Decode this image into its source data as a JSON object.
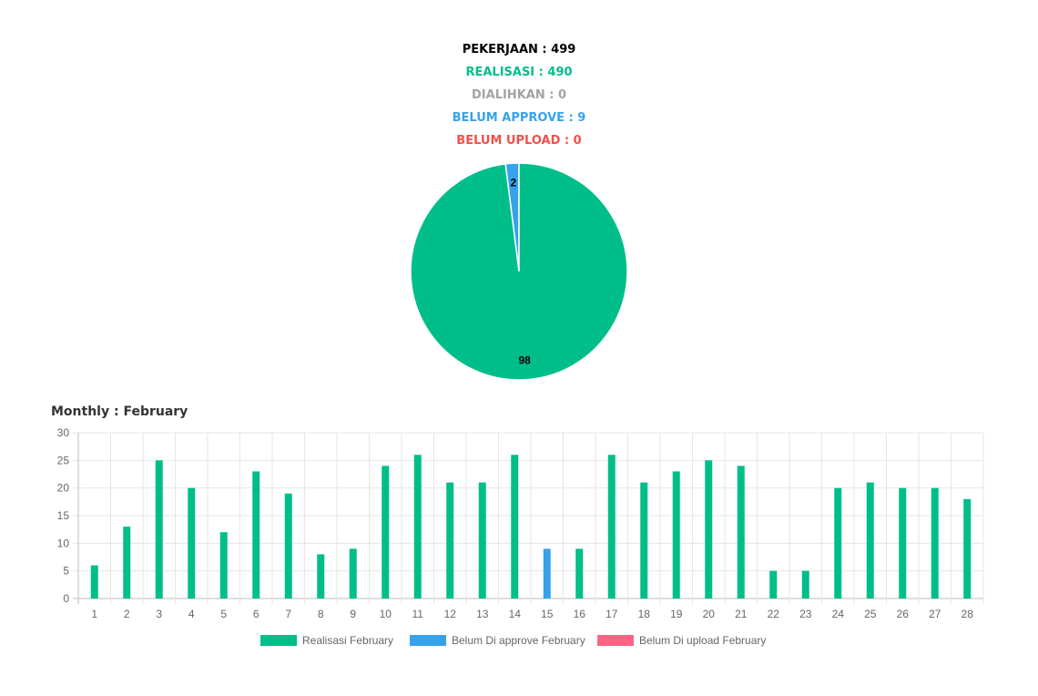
{
  "summary": {
    "pekerjaan": "PEKERJAAN : 499",
    "realisasi": "REALISASI : 490",
    "dialihkan": "DIALIHKAN : 0",
    "belum_approve": "BELUM APPROVE : 9",
    "belum_upload": "BELUM UPLOAD : 0"
  },
  "colors": {
    "realisasi": "#00be8a",
    "belum_approve": "#36a2eb",
    "belum_upload": "#ff6384",
    "dialihkan": "#a3a3a3",
    "pekerjaan": "#000000",
    "belum_upload_text": "#f0504a"
  },
  "monthly": {
    "title": "Monthly : February"
  },
  "chart_data": [
    {
      "type": "pie",
      "labels": [
        "98",
        "2"
      ],
      "values": [
        98,
        2
      ],
      "colors": [
        "#00be8a",
        "#36a2eb"
      ]
    },
    {
      "type": "bar",
      "categories": [
        "1",
        "2",
        "3",
        "4",
        "5",
        "6",
        "7",
        "8",
        "9",
        "10",
        "11",
        "12",
        "13",
        "14",
        "15",
        "16",
        "17",
        "18",
        "19",
        "20",
        "21",
        "22",
        "23",
        "24",
        "25",
        "26",
        "27",
        "28"
      ],
      "ylim": [
        0,
        30
      ],
      "yticks": [
        0,
        5,
        10,
        15,
        20,
        25,
        30
      ],
      "series": [
        {
          "name": "Realisasi February",
          "color": "#00be8a",
          "values": [
            6,
            13,
            25,
            20,
            12,
            23,
            19,
            8,
            9,
            24,
            26,
            21,
            21,
            26,
            0,
            9,
            26,
            21,
            23,
            25,
            24,
            5,
            5,
            20,
            21,
            20,
            20,
            18
          ]
        },
        {
          "name": "Belum Di approve February",
          "color": "#36a2eb",
          "values": [
            0,
            0,
            0,
            0,
            0,
            0,
            0,
            0,
            0,
            0,
            0,
            0,
            0,
            0,
            9,
            0,
            0,
            0,
            0,
            0,
            0,
            0,
            0,
            0,
            0,
            0,
            0,
            0
          ]
        },
        {
          "name": "Belum Di upload February",
          "color": "#ff6384",
          "values": [
            0,
            0,
            0,
            0,
            0,
            0,
            0,
            0,
            0,
            0,
            0,
            0,
            0,
            0,
            0,
            0,
            0,
            0,
            0,
            0,
            0,
            0,
            0,
            0,
            0,
            0,
            0,
            0
          ]
        }
      ],
      "legend": "bottom"
    }
  ]
}
